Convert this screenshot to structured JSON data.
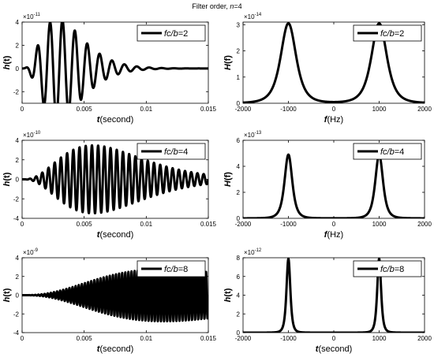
{
  "figure": {
    "title_prefix": "Filter order, ",
    "title_var": "n",
    "title_suffix": "=4"
  },
  "chart_data": [
    {
      "type": "line",
      "func": "impulse",
      "ratio": 2,
      "amp": 4.3e-11,
      "legend": {
        "var": "fc/b",
        "suffix": "=2",
        "placement": "top-right"
      },
      "xlabel": {
        "var": "t",
        "unit": "(second)"
      },
      "ylabel": {
        "var": "h",
        "arg": "(t)"
      },
      "xlim": [
        0,
        0.015
      ],
      "ylim": [
        -3,
        4
      ],
      "xticks": [
        0,
        0.005,
        0.01,
        0.015
      ],
      "xtick_labels": [
        "0",
        "0.005",
        "0.01",
        "0.015"
      ],
      "yticks": [
        -2,
        0,
        2,
        4
      ],
      "ytick_labels": [
        "-2",
        "0",
        "2",
        "4"
      ],
      "exponent": "-11",
      "grid": false
    },
    {
      "type": "line",
      "func": "spectrum",
      "ratio": 2,
      "amp": 3.05e-14,
      "legend": {
        "var": "fc/b",
        "suffix": "=2",
        "placement": "top-right"
      },
      "xlabel": {
        "var": "f",
        "unit": "(Hz)"
      },
      "ylabel": {
        "var": "H",
        "arg": "(f)"
      },
      "xlim": [
        -2000,
        2000
      ],
      "ylim": [
        0,
        3.1
      ],
      "xticks": [
        -2000,
        -1000,
        0,
        1000,
        2000
      ],
      "xtick_labels": [
        "-2000",
        "-1000",
        "0",
        "1000",
        "2000"
      ],
      "yticks": [
        0,
        1,
        2,
        3
      ],
      "ytick_labels": [
        "0",
        "1",
        "2",
        "3"
      ],
      "exponent": "-14",
      "grid": false
    },
    {
      "type": "line",
      "func": "impulse",
      "ratio": 4,
      "amp": 3.5e-10,
      "legend": {
        "var": "fc/b",
        "suffix": "=4",
        "placement": "top-right"
      },
      "xlabel": {
        "var": "t",
        "unit": "(second)"
      },
      "ylabel": {
        "var": "h",
        "arg": "(t)"
      },
      "xlim": [
        0,
        0.015
      ],
      "ylim": [
        -4,
        4
      ],
      "xticks": [
        0,
        0.005,
        0.01,
        0.015
      ],
      "xtick_labels": [
        "0",
        "0.005",
        "0.01",
        "0.015"
      ],
      "yticks": [
        -4,
        -2,
        0,
        2,
        4
      ],
      "ytick_labels": [
        "-4",
        "-2",
        "0",
        "2",
        "4"
      ],
      "exponent": "-10",
      "grid": false
    },
    {
      "type": "line",
      "func": "spectrum",
      "ratio": 4,
      "amp": 4.9e-13,
      "legend": {
        "var": "fc/b",
        "suffix": "=4",
        "placement": "top-right"
      },
      "xlabel": {
        "var": "f",
        "unit": "(Hz)"
      },
      "ylabel": {
        "var": "H",
        "arg": "(f)"
      },
      "xlim": [
        -2000,
        2000
      ],
      "ylim": [
        0,
        6
      ],
      "xticks": [
        -2000,
        -1000,
        0,
        1000,
        2000
      ],
      "xtick_labels": [
        "-2000",
        "-1000",
        "0",
        "1000",
        "2000"
      ],
      "yticks": [
        0,
        2,
        4,
        6
      ],
      "ytick_labels": [
        "0",
        "2",
        "4",
        "6"
      ],
      "exponent": "-13",
      "grid": false
    },
    {
      "type": "line",
      "func": "impulse",
      "ratio": 8,
      "amp": 2.8e-09,
      "legend": {
        "var": "fc/b",
        "suffix": "=8",
        "placement": "top-right"
      },
      "xlabel": {
        "var": "t",
        "unit": "(second)"
      },
      "ylabel": {
        "var": "h",
        "arg": "(t)"
      },
      "xlim": [
        0,
        0.015
      ],
      "ylim": [
        -4,
        4
      ],
      "xticks": [
        0,
        0.005,
        0.01,
        0.015
      ],
      "xtick_labels": [
        "0",
        "0.005",
        "0.01",
        "0.015"
      ],
      "yticks": [
        -4,
        -2,
        0,
        2,
        4
      ],
      "ytick_labels": [
        "-4",
        "-2",
        "0",
        "2",
        "4"
      ],
      "exponent": "-9",
      "grid": false
    },
    {
      "type": "line",
      "func": "spectrum",
      "ratio": 8,
      "amp": 7.9e-12,
      "legend": {
        "var": "fc/b",
        "suffix": "=8",
        "placement": "top-right"
      },
      "xlabel": {
        "var": "t",
        "unit": "(second)"
      },
      "ylabel": {
        "var": "h",
        "arg": "(t)"
      },
      "xlim": [
        -2000,
        2000
      ],
      "ylim": [
        0,
        8
      ],
      "xticks": [
        -2000,
        -1000,
        0,
        1000,
        2000
      ],
      "xtick_labels": [
        "-2000",
        "-1000",
        "0",
        "1000",
        "2000"
      ],
      "yticks": [
        0,
        2,
        4,
        6,
        8
      ],
      "ytick_labels": [
        "0",
        "2",
        "4",
        "6",
        "8"
      ],
      "exponent": "-12",
      "grid": false
    }
  ],
  "colors": {
    "line": "#000000",
    "axes": "#000000",
    "background": "#ffffff"
  }
}
